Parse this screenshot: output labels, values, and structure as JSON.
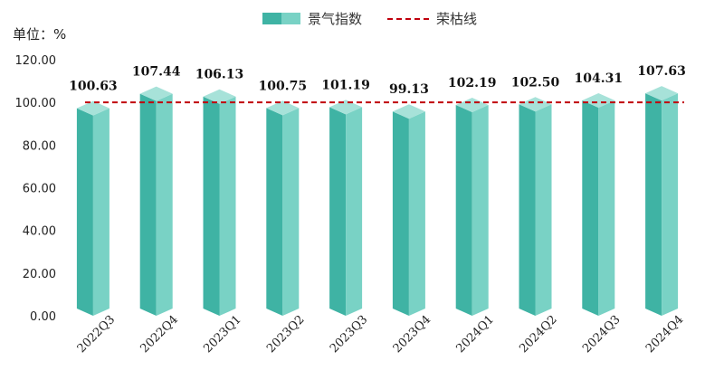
{
  "unit": "单位：%",
  "legend": {
    "bar_label": "景气指数",
    "line_label": "荣枯线"
  },
  "colors": {
    "bar_front": "#3fb3a4",
    "bar_side": "#79d2c5",
    "bar_top": "#a7e2d9",
    "line": "#c0000d"
  },
  "chart_data": {
    "type": "bar",
    "categories": [
      "2022Q3",
      "2022Q4",
      "2023Q1",
      "2023Q2",
      "2023Q3",
      "2023Q4",
      "2024Q1",
      "2024Q2",
      "2024Q3",
      "2024Q4"
    ],
    "series": [
      {
        "name": "景气指数",
        "values": [
          100.63,
          107.44,
          106.13,
          100.75,
          101.19,
          99.13,
          102.19,
          102.5,
          104.31,
          107.63
        ]
      }
    ],
    "value_labels": [
      "100.63",
      "107.44",
      "106.13",
      "100.75",
      "101.19",
      "99.13",
      "102.19",
      "102.50",
      "104.31",
      "107.63"
    ],
    "reference_line": {
      "name": "荣枯线",
      "value": 100
    },
    "ylim": [
      0,
      120
    ],
    "yticks": [
      "0.00",
      "20.00",
      "40.00",
      "60.00",
      "80.00",
      "100.00",
      "120.00"
    ],
    "grid": false,
    "legend_position": "top"
  }
}
